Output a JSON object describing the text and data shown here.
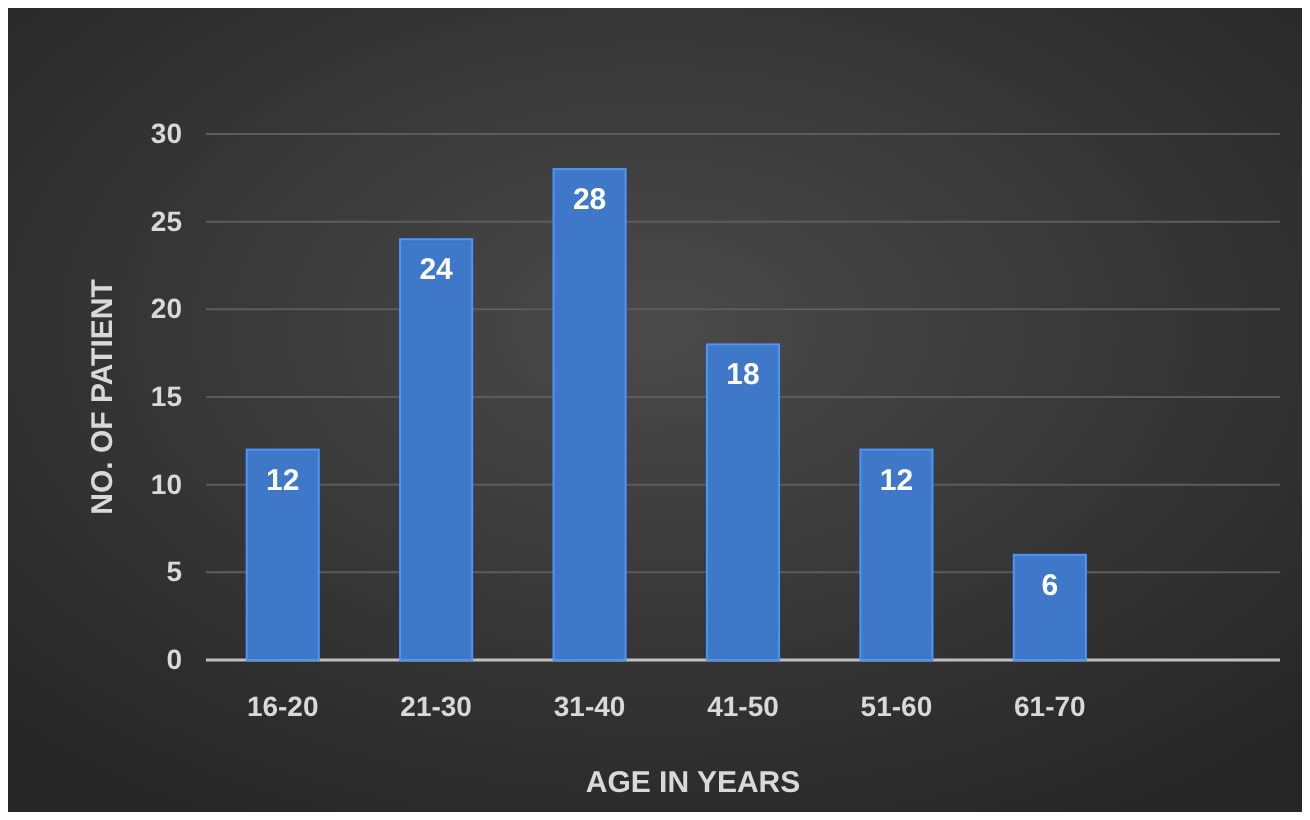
{
  "chart_data": {
    "type": "bar",
    "xlabel": "AGE IN YEARS",
    "ylabel": "NO. OF PATIENT",
    "categories": [
      "16-20",
      "21-30",
      "31-40",
      "41-50",
      "51-60",
      "61-70",
      null
    ],
    "values": [
      12,
      24,
      28,
      18,
      12,
      6,
      null
    ],
    "color": "#3f78c8",
    "ylim": [
      0,
      30
    ],
    "yticks": [
      0,
      5,
      10,
      15,
      20,
      25,
      30
    ],
    "grid": "y",
    "data_labels": true
  }
}
